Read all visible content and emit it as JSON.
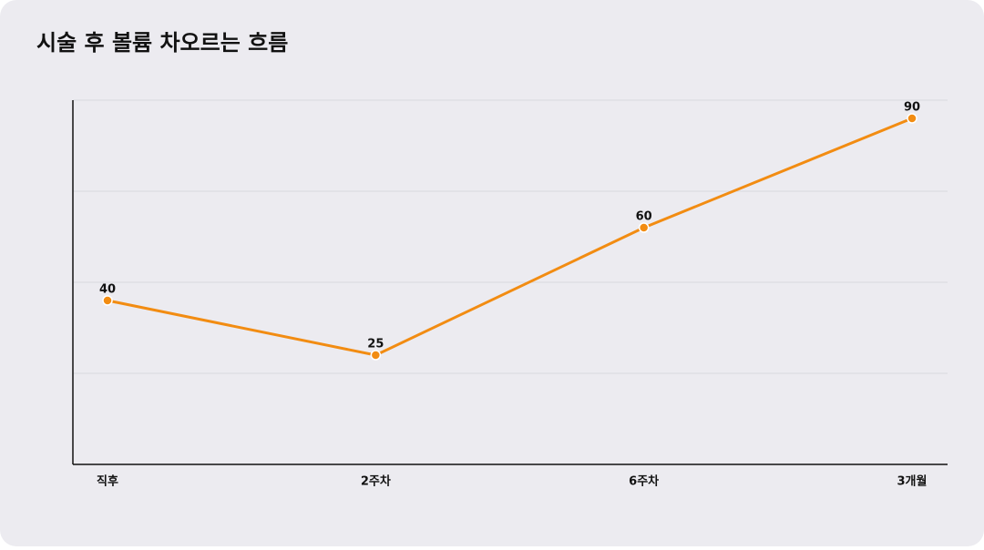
{
  "chart_data": {
    "type": "line",
    "title": "시술 후 볼륨 차오르는 흐름",
    "categories": [
      "직후",
      "2주차",
      "6주차",
      "3개월"
    ],
    "values": [
      40,
      25,
      60,
      90
    ],
    "color": "#f28c12",
    "ylim": [
      -5,
      95
    ],
    "yticks": [
      20,
      45,
      70,
      95
    ],
    "grid": true
  }
}
